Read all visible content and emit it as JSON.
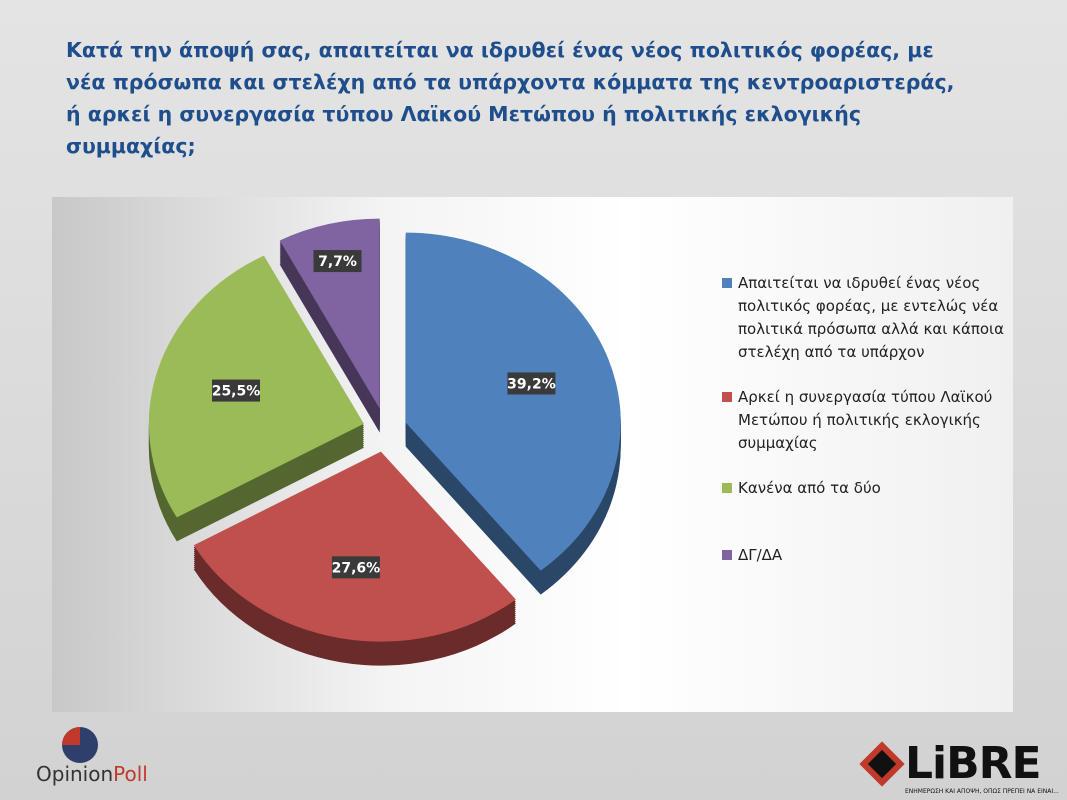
{
  "chart_data": {
    "type": "pie",
    "title": "Κατά την άποψή σας, απαιτείται να ιδρυθεί ένας νέος πολιτικός φορέας, με νέα πρόσωπα και στελέχη από τα υπάρχοντα κόμματα της κεντροαριστεράς, ή αρκεί η συνεργασία τύπου  Λαϊκού  Μετώπου ή πολιτικής εκλογικής συμμαχίας;",
    "categories": [
      "Απαιτείται να ιδρυθεί ένας νέος πολιτικός φορέας, με εντελώς νέα πολιτικά πρόσωπα αλλά και κάποια στελέχη από τα υπάρχον",
      "Αρκεί η συνεργασία τύπου  Λαϊκού Μετώπου ή πολιτικής εκλογικής συμμαχίας",
      "Κανένα από τα δύο",
      "ΔΓ/ΔΑ"
    ],
    "values": [
      39.2,
      27.6,
      25.5,
      7.7
    ],
    "value_labels": [
      "39,2%",
      "27,6%",
      "25,5%",
      "7,7%"
    ],
    "colors": [
      "#4f81bd",
      "#c0504d",
      "#9bbb59",
      "#8064a2"
    ],
    "legend": "right"
  },
  "logos": {
    "opinion": "Opinion",
    "poll": "Poll",
    "libre": "LiBRE",
    "libre_tagline": "ΕΝΗΜΕΡΩΣΗ ΚΑΙ ΑΠΟΨΗ, ΟΠΩΣ ΠΡΕΠΕΙ ΝΑ ΕΙΝΑΙ..."
  }
}
